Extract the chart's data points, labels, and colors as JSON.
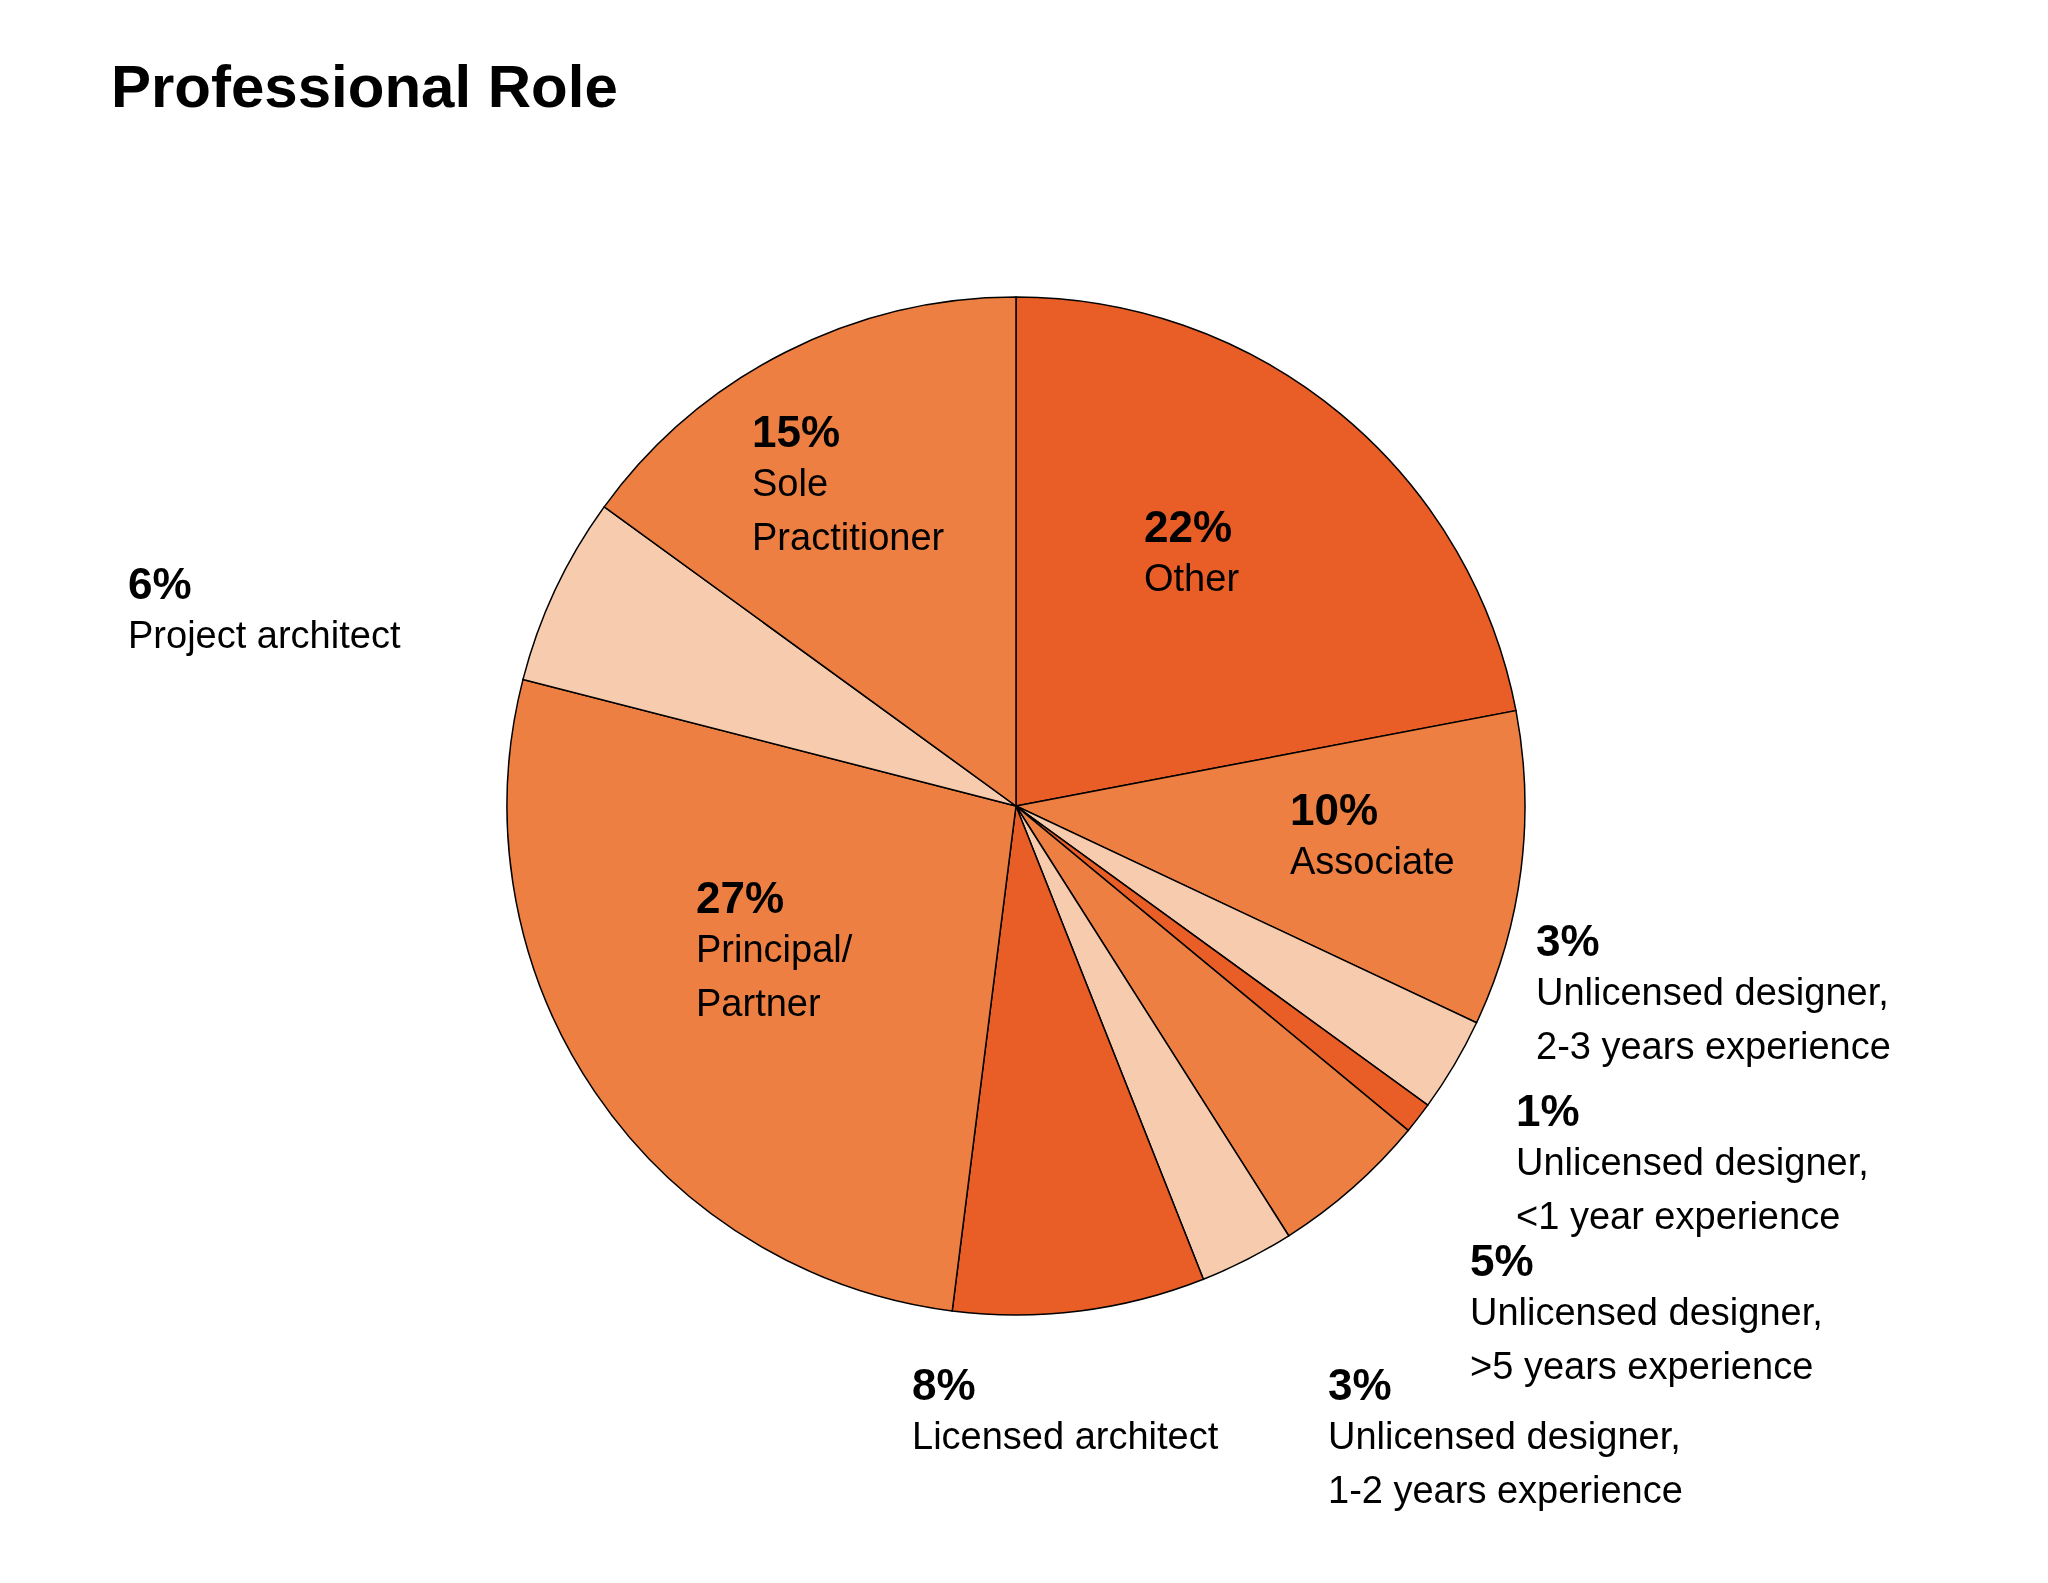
{
  "chart_data": {
    "type": "pie",
    "title": "Professional Role",
    "categories": [
      "Other",
      "Associate",
      "Unlicensed designer, 2-3 years experience",
      "Unlicensed designer, <1 year experience",
      "Unlicensed designer, >5 years experience",
      "Unlicensed designer, 1-2 years experience",
      "Licensed architect",
      "Principal/Partner",
      "Project architect",
      "Sole Practitioner"
    ],
    "values": [
      22,
      10,
      3,
      1,
      5,
      3,
      8,
      27,
      6,
      15
    ],
    "value_labels": [
      "22%",
      "10%",
      "3%",
      "1%",
      "5%",
      "3%",
      "8%",
      "27%",
      "6%",
      "15%"
    ],
    "colors": [
      "#e85e26",
      "#ed7f42",
      "#f7cbad",
      "#e85e26",
      "#ed7f42",
      "#f7cbad",
      "#e85e26",
      "#ed7f42",
      "#f7cbad",
      "#ed7f42"
    ]
  }
}
